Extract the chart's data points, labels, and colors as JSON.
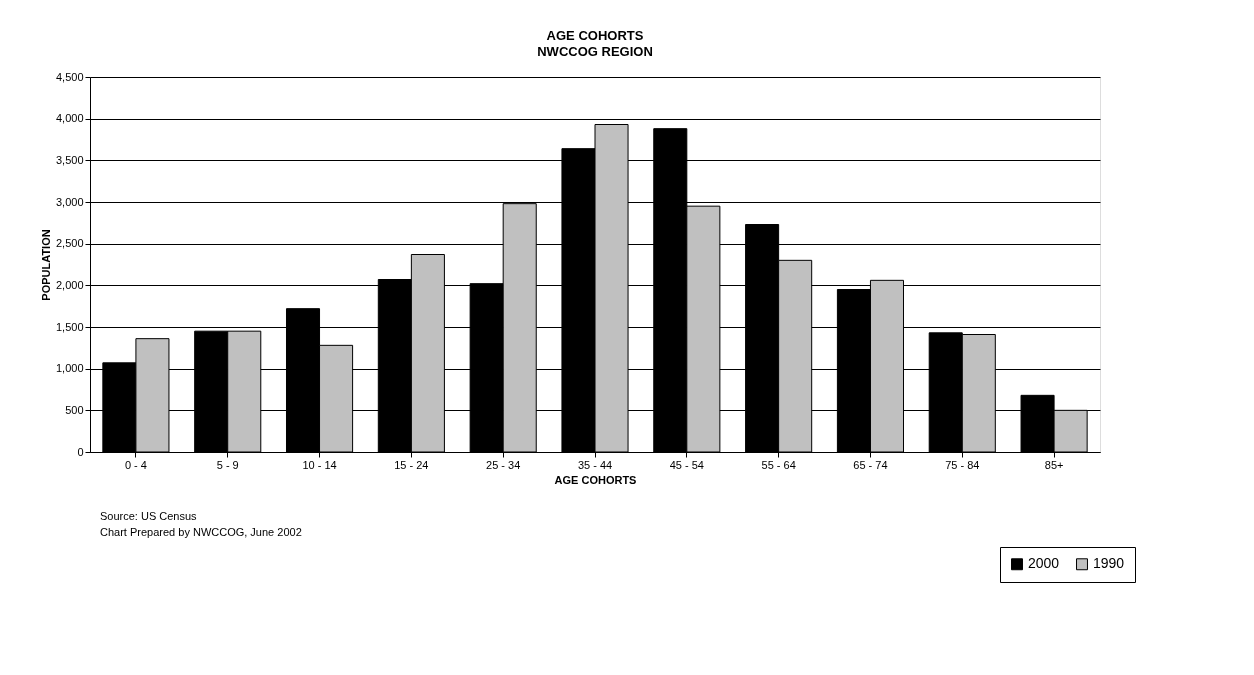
{
  "chart_data": {
    "type": "bar",
    "title": "AGE COHORTS",
    "subtitle": "NWCCOG REGION",
    "xlabel": "AGE COHORTS",
    "ylabel": "POPULATION",
    "categories": [
      "0 - 4",
      "5 - 9",
      "10 - 14",
      "15 - 24",
      "25 - 34",
      "35 - 44",
      "45 - 54",
      "55 - 64",
      "65 - 74",
      "75 - 84",
      "85+"
    ],
    "series": [
      {
        "name": "2000",
        "color": "#000000",
        "values": [
          1070,
          1450,
          1720,
          2070,
          2020,
          3640,
          3880,
          2730,
          1950,
          1430,
          680
        ]
      },
      {
        "name": "1990",
        "color": "#c0c0c0",
        "values": [
          1360,
          1450,
          1280,
          2370,
          2980,
          3930,
          2950,
          2300,
          2060,
          1410,
          500
        ]
      }
    ],
    "ylim": [
      0,
      4500
    ],
    "yticks": [
      {
        "value": 0,
        "label": "0"
      },
      {
        "value": 500,
        "label": "500"
      },
      {
        "value": 1000,
        "label": "1,000"
      },
      {
        "value": 1500,
        "label": "1,500"
      },
      {
        "value": 2000,
        "label": "2,000"
      },
      {
        "value": 2500,
        "label": "2,500"
      },
      {
        "value": 3000,
        "label": "3,000"
      },
      {
        "value": 3500,
        "label": "3,500"
      },
      {
        "value": 4000,
        "label": "4,000"
      },
      {
        "value": 4500,
        "label": "4,500"
      }
    ],
    "grid": "y",
    "legend": "bottom right",
    "annotations": [
      "Source: US Census",
      "Chart Prepared by NWCCOG, June 2002"
    ]
  }
}
